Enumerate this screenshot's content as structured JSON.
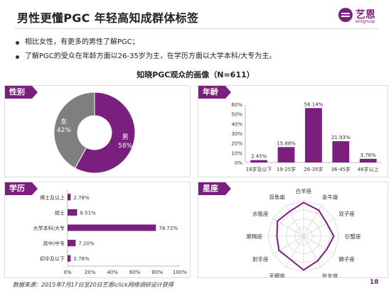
{
  "title": "男性更懂PGC   年轻高知成群体标签",
  "logo": {
    "name": "艺恩",
    "sub": "entgroup"
  },
  "bullets": [
    "相比女性，有更多的男性了解PGC；",
    "了解PGC的受众在年龄方面以26-35岁为主，在学历方面以大学本科/大专为主。"
  ],
  "subtitle": "知晓PGC观众的画像（N=611）",
  "panels": {
    "gender": "性别",
    "age": "年龄",
    "education": "学历",
    "zodiac": "星座"
  },
  "footer": "数据来源：2015年7月17日至20日艺恩iclick网络调研设计获得",
  "page_number": "18",
  "colors": {
    "accent": "#7a1f7e",
    "secondary": "#7f7f7f"
  },
  "chart_data": [
    {
      "type": "pie",
      "labels": [
        "男",
        "女"
      ],
      "values": [
        58,
        42
      ],
      "value_labels": [
        "58%",
        "42%"
      ],
      "colors": [
        "#7a1f7e",
        "#7f7f7f"
      ]
    },
    {
      "type": "bar",
      "categories": [
        "18岁及以下",
        "19-25岁",
        "26-35岁",
        "36-45岁",
        "46岁以上"
      ],
      "values": [
        2.45,
        15.88,
        56.14,
        21.93,
        3.76
      ],
      "value_labels": [
        "2.45%",
        "15.88%",
        "56.14%",
        "21.93%",
        "3.76%"
      ],
      "ylim": [
        0,
        60
      ],
      "yticks": [
        "0%",
        "10%",
        "20%",
        "30%",
        "40%",
        "50%",
        "60%"
      ],
      "grid": false
    },
    {
      "type": "bar",
      "orientation": "horizontal",
      "categories": [
        "博士及以上",
        "硕士",
        "大学本科/大专",
        "高中/中专",
        "初中及以下"
      ],
      "values": [
        2.78,
        8.51,
        78.72,
        7.2,
        2.78
      ],
      "value_labels": [
        "2.78%",
        "8.51%",
        "78.72%",
        "7.20%",
        "2.78%"
      ],
      "xlim": [
        0,
        100
      ],
      "xticks": [
        "0%",
        "20%",
        "40%",
        "60%",
        "80%",
        "100%"
      ]
    },
    {
      "type": "radar",
      "categories": [
        "白羊座",
        "金牛座",
        "双子座",
        "巨蟹座",
        "狮子座",
        "处女座",
        "天秤座",
        "天蝎座",
        "射手座",
        "摩羯座",
        "水瓶座",
        "双鱼座"
      ],
      "values": [
        9.5,
        8.5,
        7.5,
        8.5,
        7.5,
        8,
        9.5,
        7.5,
        8,
        7.5,
        8.5,
        8
      ],
      "rlim": [
        0,
        10
      ]
    }
  ]
}
